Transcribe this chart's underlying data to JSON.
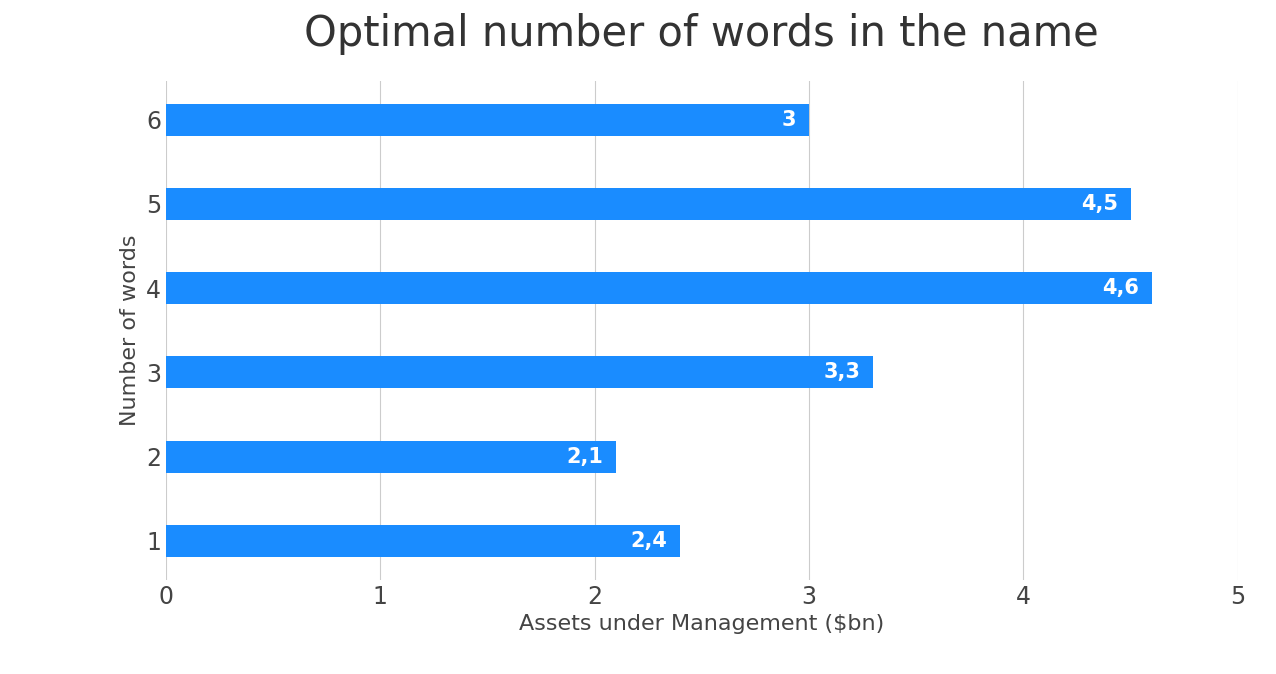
{
  "title": "Optimal number of words in the name",
  "xlabel": "Assets under Management ($bn)",
  "ylabel": "Number of words",
  "categories": [
    "1",
    "2",
    "3",
    "4",
    "5",
    "6"
  ],
  "values": [
    2.4,
    2.1,
    3.3,
    4.6,
    4.5,
    3.0
  ],
  "labels": [
    "2,4",
    "2,1",
    "3,3",
    "4,6",
    "4,5",
    "3"
  ],
  "bar_color": "#1a8cff",
  "label_color": "#ffffff",
  "background_color": "#ffffff",
  "grid_color": "#cccccc",
  "title_fontsize": 30,
  "axis_label_fontsize": 16,
  "tick_fontsize": 17,
  "bar_label_fontsize": 15,
  "xlim": [
    0,
    5
  ],
  "xticks": [
    0,
    1,
    2,
    3,
    4,
    5
  ],
  "bar_height": 0.38
}
